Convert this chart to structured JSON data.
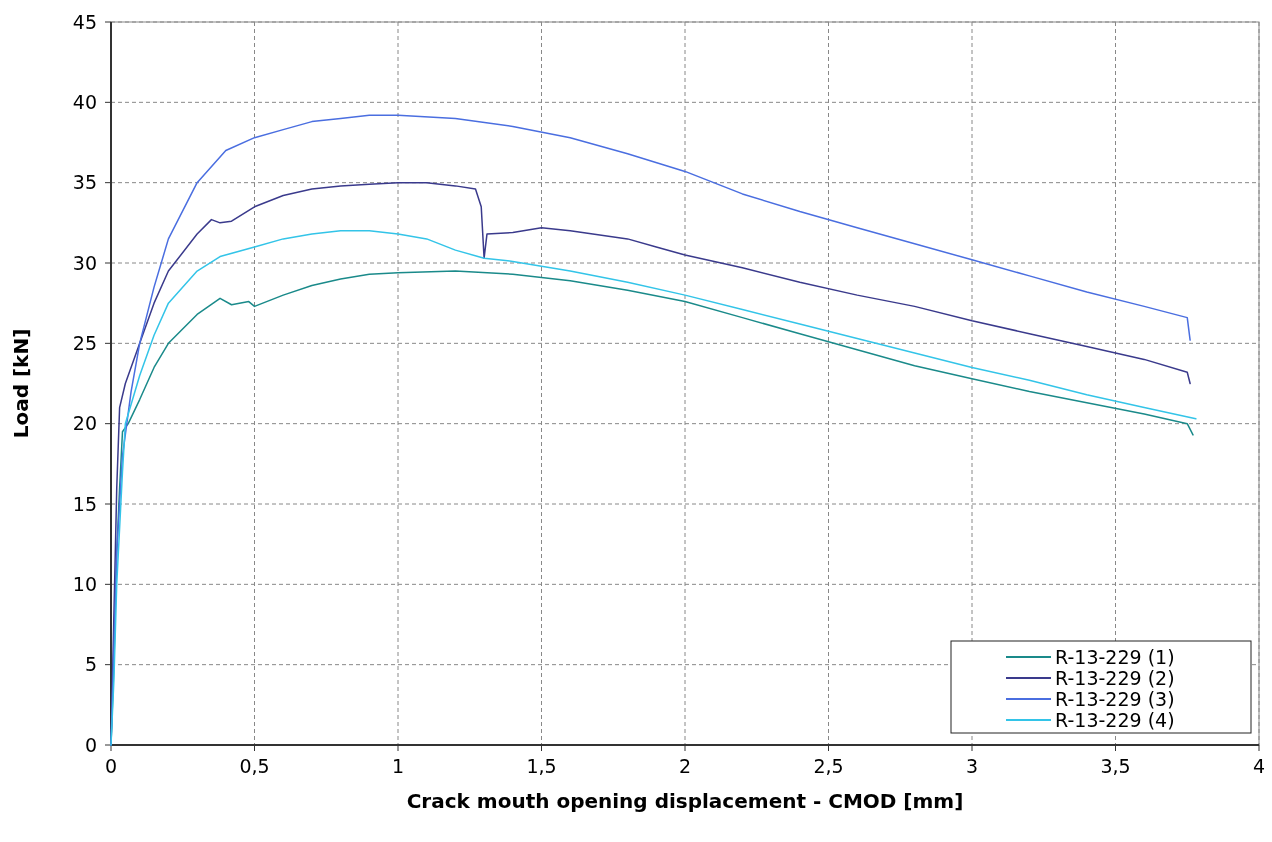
{
  "chart_data": {
    "type": "line",
    "xlabel": "Crack mouth opening displacement - CMOD [mm]",
    "ylabel": "Load [kN]",
    "xlim": [
      0,
      4
    ],
    "ylim": [
      0,
      45
    ],
    "xticks": [
      0,
      {
        "value": 0.5,
        "label": "0,5"
      },
      1,
      {
        "value": 1.5,
        "label": "1,5"
      },
      2,
      {
        "value": 2.5,
        "label": "2,5"
      },
      3,
      {
        "value": 3.5,
        "label": "3,5"
      },
      4
    ],
    "yticks": [
      0,
      5,
      10,
      15,
      20,
      25,
      30,
      35,
      40,
      45
    ],
    "grid": true,
    "legend": "bottom right",
    "marker": "none",
    "line_style": "solid",
    "series": [
      {
        "name": "R-13-229 (1)",
        "color": "#1a8a8a",
        "x": [
          0,
          0.01,
          0.02,
          0.03,
          0.04,
          0.06,
          0.1,
          0.15,
          0.2,
          0.3,
          0.38,
          0.42,
          0.48,
          0.5,
          0.6,
          0.7,
          0.8,
          0.9,
          1,
          1.2,
          1.4,
          1.6,
          1.8,
          2,
          2.2,
          2.4,
          2.6,
          2.8,
          3,
          3.2,
          3.4,
          3.6,
          3.75,
          3.77
        ],
        "values": [
          0,
          5,
          12,
          16,
          19.5,
          20,
          21.5,
          23.5,
          25,
          26.8,
          27.8,
          27.4,
          27.6,
          27.3,
          28,
          28.6,
          29,
          29.3,
          29.4,
          29.5,
          29.3,
          28.9,
          28.3,
          27.6,
          26.6,
          25.6,
          24.6,
          23.6,
          22.8,
          22,
          21.3,
          20.6,
          20,
          19.3
        ]
      },
      {
        "name": "R-13-229 (2)",
        "color": "#3a3a8c",
        "x": [
          0,
          0.01,
          0.02,
          0.03,
          0.05,
          0.1,
          0.15,
          0.2,
          0.3,
          0.35,
          0.38,
          0.42,
          0.5,
          0.6,
          0.7,
          0.8,
          0.9,
          1,
          1.1,
          1.2,
          1.27,
          1.29,
          1.3,
          1.31,
          1.4,
          1.5,
          1.6,
          1.8,
          1.9,
          2,
          2.2,
          2.4,
          2.6,
          2.8,
          3,
          3.2,
          3.4,
          3.6,
          3.75,
          3.76
        ],
        "values": [
          0,
          8,
          16,
          21,
          22.5,
          25,
          27.5,
          29.5,
          31.8,
          32.7,
          32.5,
          32.6,
          33.5,
          34.2,
          34.6,
          34.8,
          34.9,
          35,
          35,
          34.8,
          34.6,
          33.5,
          30.3,
          31.8,
          31.9,
          32.2,
          32,
          31.5,
          31,
          30.5,
          29.7,
          28.8,
          28,
          27.3,
          26.4,
          25.6,
          24.8,
          24,
          23.2,
          22.5
        ]
      },
      {
        "name": "R-13-229 (3)",
        "color": "#4a6ee0",
        "x": [
          0,
          0.01,
          0.02,
          0.04,
          0.07,
          0.1,
          0.15,
          0.2,
          0.3,
          0.4,
          0.5,
          0.6,
          0.7,
          0.8,
          0.9,
          1,
          1.2,
          1.4,
          1.6,
          1.8,
          2,
          2.2,
          2.4,
          2.6,
          2.8,
          3,
          3.2,
          3.4,
          3.6,
          3.75,
          3.76
        ],
        "values": [
          0,
          6,
          12,
          18,
          22,
          25,
          28.5,
          31.5,
          35,
          37,
          37.8,
          38.3,
          38.8,
          39,
          39.2,
          39.2,
          39,
          38.5,
          37.8,
          36.8,
          35.7,
          34.3,
          33.2,
          32.2,
          31.2,
          30.2,
          29.2,
          28.2,
          27.3,
          26.6,
          25.2
        ]
      },
      {
        "name": "R-13-229 (4)",
        "color": "#33c4e8",
        "x": [
          0,
          0.01,
          0.02,
          0.04,
          0.05,
          0.1,
          0.15,
          0.2,
          0.3,
          0.38,
          0.5,
          0.6,
          0.7,
          0.8,
          0.9,
          1,
          1.1,
          1.2,
          1.3,
          1.4,
          1.6,
          1.8,
          2,
          2.2,
          2.4,
          2.6,
          2.8,
          3,
          3.2,
          3.4,
          3.6,
          3.78
        ],
        "values": [
          0,
          4,
          10,
          17,
          20,
          23,
          25.5,
          27.5,
          29.5,
          30.4,
          31,
          31.5,
          31.8,
          32,
          32,
          31.8,
          31.5,
          30.8,
          30.3,
          30.1,
          29.5,
          28.8,
          28,
          27.1,
          26.2,
          25.3,
          24.4,
          23.5,
          22.7,
          21.8,
          21,
          20.3
        ]
      }
    ]
  }
}
